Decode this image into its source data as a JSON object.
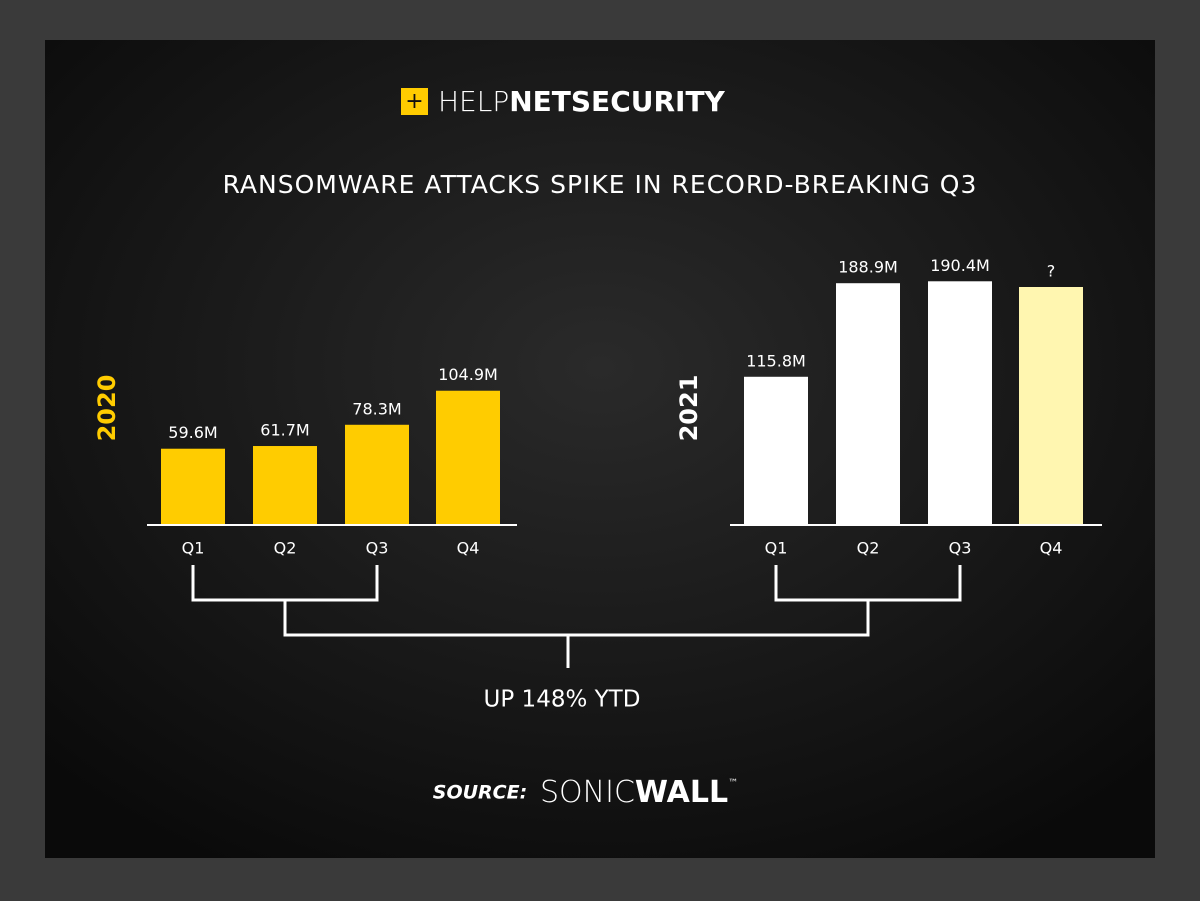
{
  "brand": {
    "logo_light": "HELP",
    "logo_bold": "NETSECURITY"
  },
  "title": "RANSOMWARE ATTACKS SPIKE IN RECORD-BREAKING Q3",
  "chart_data": [
    {
      "type": "bar",
      "title": "2020",
      "categories": [
        "Q1",
        "Q2",
        "Q3",
        "Q4"
      ],
      "values": [
        59.6,
        61.7,
        78.3,
        104.9
      ],
      "value_labels": [
        "59.6M",
        "61.7M",
        "78.3M",
        "104.9M"
      ],
      "color": "#ffcc00"
    },
    {
      "type": "bar",
      "title": "2021",
      "categories": [
        "Q1",
        "Q2",
        "Q3",
        "Q4"
      ],
      "values": [
        115.8,
        188.9,
        190.4,
        null
      ],
      "value_labels": [
        "115.8M",
        "188.9M",
        "190.4M",
        "?"
      ],
      "color": "#ffffff"
    }
  ],
  "annotation": "UP 148% YTD",
  "source": {
    "label": "SOURCE:",
    "name_light": "SONIC",
    "name_bold": "WALL",
    "mark": "™"
  }
}
